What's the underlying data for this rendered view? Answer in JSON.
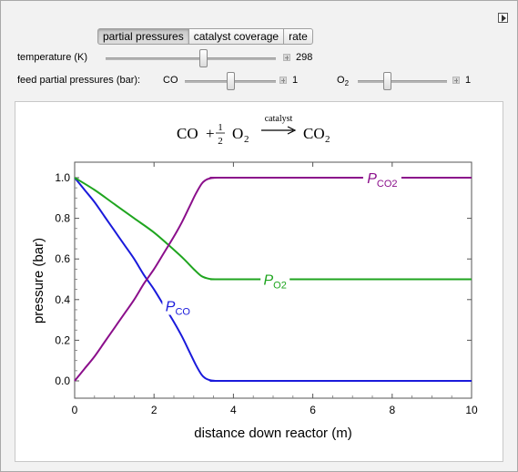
{
  "tabs": [
    {
      "label": "partial pressures",
      "active": true
    },
    {
      "label": "catalyst coverage",
      "active": false
    },
    {
      "label": "rate",
      "active": false
    }
  ],
  "controls": {
    "temperature": {
      "label": "temperature (K)",
      "value": "298",
      "fraction": 0.57
    },
    "feed_label": "feed partial pressures (bar):",
    "co": {
      "label": "CO",
      "value": "1",
      "fraction": 0.5
    },
    "o2": {
      "label": "O",
      "label_sub": "2",
      "value": "1",
      "fraction": 0.33
    }
  },
  "reaction": {
    "reactant1": "CO",
    "plus": "+",
    "coef_num": "1",
    "coef_den": "2",
    "reactant2": "O",
    "reactant2_sub": "2",
    "over_arrow": "catalyst",
    "product": "CO",
    "product_sub": "2"
  },
  "chart_data": {
    "type": "line",
    "xlabel": "distance down reactor (m)",
    "ylabel": "pressure (bar)",
    "xlim": [
      0,
      10
    ],
    "ylim": [
      0,
      1.0
    ],
    "x_ticks": [
      "0",
      "2",
      "4",
      "6",
      "8",
      "10"
    ],
    "y_ticks": [
      "0.0",
      "0.2",
      "0.4",
      "0.6",
      "0.8",
      "1.0"
    ],
    "grid": false,
    "series": [
      {
        "name": "P_CO",
        "label_main": "P",
        "label_sub": "CO",
        "color": "#1a1adb",
        "x": [
          0,
          0.25,
          0.5,
          0.75,
          1.0,
          1.25,
          1.5,
          1.75,
          2.0,
          2.25,
          2.5,
          2.7,
          2.9,
          3.05,
          3.2,
          3.3,
          3.4,
          3.5,
          3.6,
          4.0,
          10
        ],
        "y": [
          1.0,
          0.94,
          0.88,
          0.81,
          0.74,
          0.67,
          0.6,
          0.52,
          0.45,
          0.37,
          0.29,
          0.22,
          0.14,
          0.08,
          0.03,
          0.012,
          0.004,
          0.001,
          0.0,
          0.0,
          0.0
        ]
      },
      {
        "name": "P_O2",
        "label_main": "P",
        "label_sub": "O2",
        "color": "#1fa51f",
        "x": [
          0,
          0.5,
          1.0,
          1.5,
          2.0,
          2.5,
          2.75,
          3.0,
          3.2,
          3.4,
          3.6,
          4.0,
          10
        ],
        "y": [
          1.0,
          0.94,
          0.87,
          0.8,
          0.73,
          0.645,
          0.6,
          0.55,
          0.515,
          0.502,
          0.5,
          0.5,
          0.5
        ]
      },
      {
        "name": "P_CO2",
        "label_main": "P",
        "label_sub": "CO2",
        "color": "#8b0f8b",
        "x": [
          0,
          0.25,
          0.5,
          0.75,
          1.0,
          1.25,
          1.5,
          1.75,
          2.0,
          2.25,
          2.5,
          2.7,
          2.9,
          3.05,
          3.2,
          3.3,
          3.4,
          3.5,
          3.6,
          4.0,
          10
        ],
        "y": [
          0.0,
          0.06,
          0.12,
          0.19,
          0.26,
          0.33,
          0.4,
          0.48,
          0.55,
          0.63,
          0.71,
          0.78,
          0.86,
          0.92,
          0.97,
          0.988,
          0.996,
          0.999,
          1.0,
          1.0,
          1.0
        ]
      }
    ],
    "annotations": [
      {
        "series": 0,
        "x": 2.6,
        "y": 0.37
      },
      {
        "series": 1,
        "x": 5.05,
        "y": 0.5
      },
      {
        "series": 2,
        "x": 7.75,
        "y": 1.0
      }
    ]
  }
}
